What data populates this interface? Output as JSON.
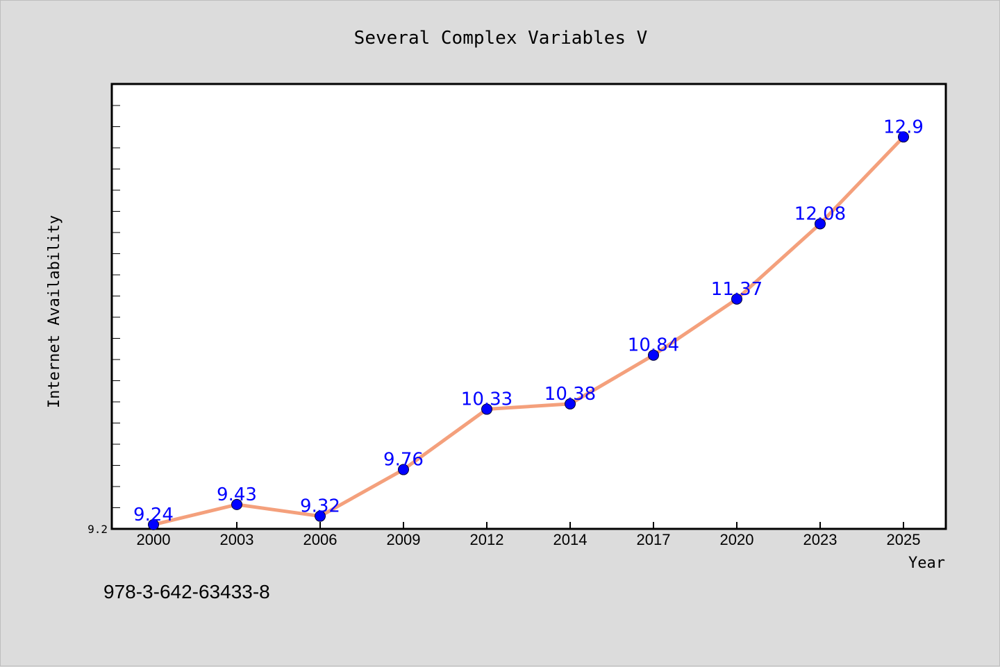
{
  "footer": {
    "isbn": "978-3-642-63433-8"
  },
  "colors": {
    "background": "#dcdcdc",
    "plot_bg": "#ffffff",
    "line": "#f4a07c",
    "marker": "#0000ff",
    "label": "#0000ff"
  },
  "chart_data": {
    "type": "line",
    "title": "Several Complex Variables V",
    "xlabel": "Year",
    "ylabel": "Internet Availability",
    "categories": [
      "2000",
      "2003",
      "2006",
      "2009",
      "2012",
      "2014",
      "2017",
      "2020",
      "2023",
      "2025"
    ],
    "series": [
      {
        "values": [
          9.24,
          9.43,
          9.32,
          9.76,
          10.33,
          10.38,
          10.84,
          11.37,
          12.08,
          12.9
        ],
        "data_labels": [
          "9.24",
          "9.43",
          "9.32",
          "9.76",
          "10.33",
          "10.38",
          "10.84",
          "11.37",
          "12.08",
          "12.9"
        ]
      }
    ],
    "ylim": [
      9.2,
      13.4
    ],
    "yticks": [
      "9.2"
    ],
    "grid": false,
    "legend": "none"
  }
}
